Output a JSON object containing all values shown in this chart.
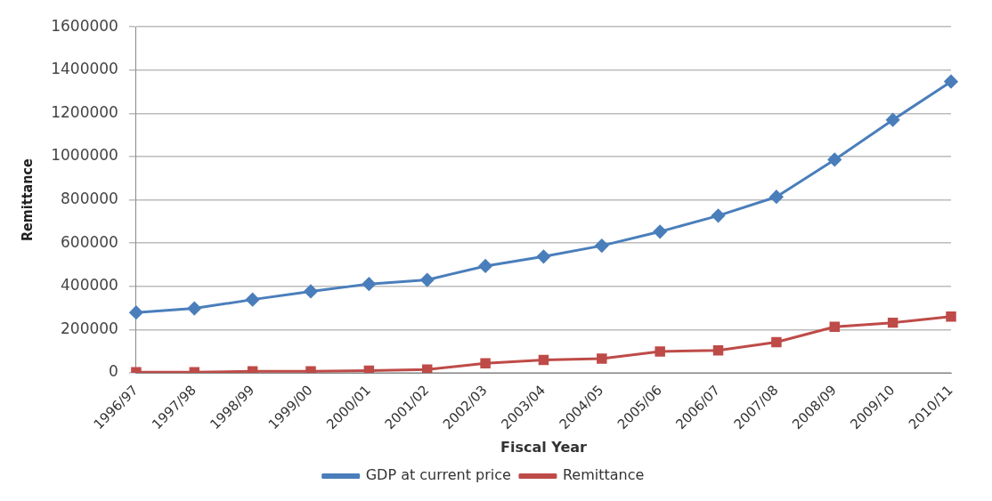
{
  "chart_data": {
    "type": "line",
    "xlabel": "Fiscal Year",
    "ylabel": "Remittance",
    "categories": [
      "1996/97",
      "1997/98",
      "1998/99",
      "1999/00",
      "2000/01",
      "2001/02",
      "2002/03",
      "2003/04",
      "2004/05",
      "2005/06",
      "2006/07",
      "2007/08",
      "2008/09",
      "2009/10",
      "2010/11"
    ],
    "series": [
      {
        "name": "GDP at current price",
        "color": "#4a7ebb",
        "marker": "diamond",
        "values": [
          279000,
          298000,
          339000,
          377000,
          411000,
          430000,
          494000,
          538000,
          588000,
          653000,
          727000,
          814000,
          986000,
          1170000,
          1347000
        ]
      },
      {
        "name": "Remittance",
        "color": "#be4b48",
        "marker": "square",
        "values": [
          3000,
          3000,
          7000,
          7000,
          10000,
          15000,
          44000,
          60000,
          66000,
          99000,
          104000,
          142000,
          213000,
          232000,
          260000
        ]
      }
    ],
    "ylim": [
      0,
      1600000
    ],
    "yticks": [
      0,
      200000,
      400000,
      600000,
      800000,
      1000000,
      1200000,
      1400000,
      1600000
    ],
    "grid": "y",
    "legend": "bottom"
  }
}
